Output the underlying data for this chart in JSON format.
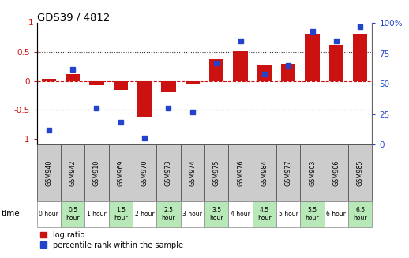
{
  "title": "GDS39 / 4812",
  "samples": [
    "GSM940",
    "GSM942",
    "GSM910",
    "GSM969",
    "GSM970",
    "GSM973",
    "GSM974",
    "GSM975",
    "GSM976",
    "GSM984",
    "GSM977",
    "GSM903",
    "GSM906",
    "GSM985"
  ],
  "time_labels": [
    "0 hour",
    "0.5\nhour",
    "1 hour",
    "1.5\nhour",
    "2 hour",
    "2.5\nhour",
    "3 hour",
    "3.5\nhour",
    "4 hour",
    "4.5\nhour",
    "5 hour",
    "5.5\nhour",
    "6 hour",
    "6.5\nhour"
  ],
  "time_colors": [
    "#ffffff",
    "#b8e8b8",
    "#ffffff",
    "#b8e8b8",
    "#ffffff",
    "#b8e8b8",
    "#ffffff",
    "#b8e8b8",
    "#ffffff",
    "#b8e8b8",
    "#ffffff",
    "#b8e8b8",
    "#ffffff",
    "#b8e8b8"
  ],
  "log_ratio": [
    0.03,
    0.12,
    -0.07,
    -0.16,
    -0.62,
    -0.18,
    -0.05,
    0.38,
    0.52,
    0.28,
    0.3,
    0.82,
    0.63,
    0.82
  ],
  "percentile": [
    12,
    62,
    30,
    18,
    5,
    30,
    27,
    67,
    85,
    58,
    65,
    93,
    85,
    97
  ],
  "ylim_left": [
    -1.1,
    1.0
  ],
  "ylim_right": [
    0,
    100
  ],
  "yticks_left": [
    -1,
    -0.5,
    0,
    0.5
  ],
  "yticks_right": [
    0,
    25,
    50,
    75,
    100
  ],
  "ytick_top_label": "1",
  "bar_color": "#cc1111",
  "dot_color": "#2244cc",
  "background_color": "#ffffff",
  "dotted_color": "#333333",
  "zero_line_color": "#cc1111",
  "header_bg": "#cccccc",
  "cell_border": "#888888",
  "legend_bar_label": "log ratio",
  "legend_dot_label": "percentile rank within the sample"
}
